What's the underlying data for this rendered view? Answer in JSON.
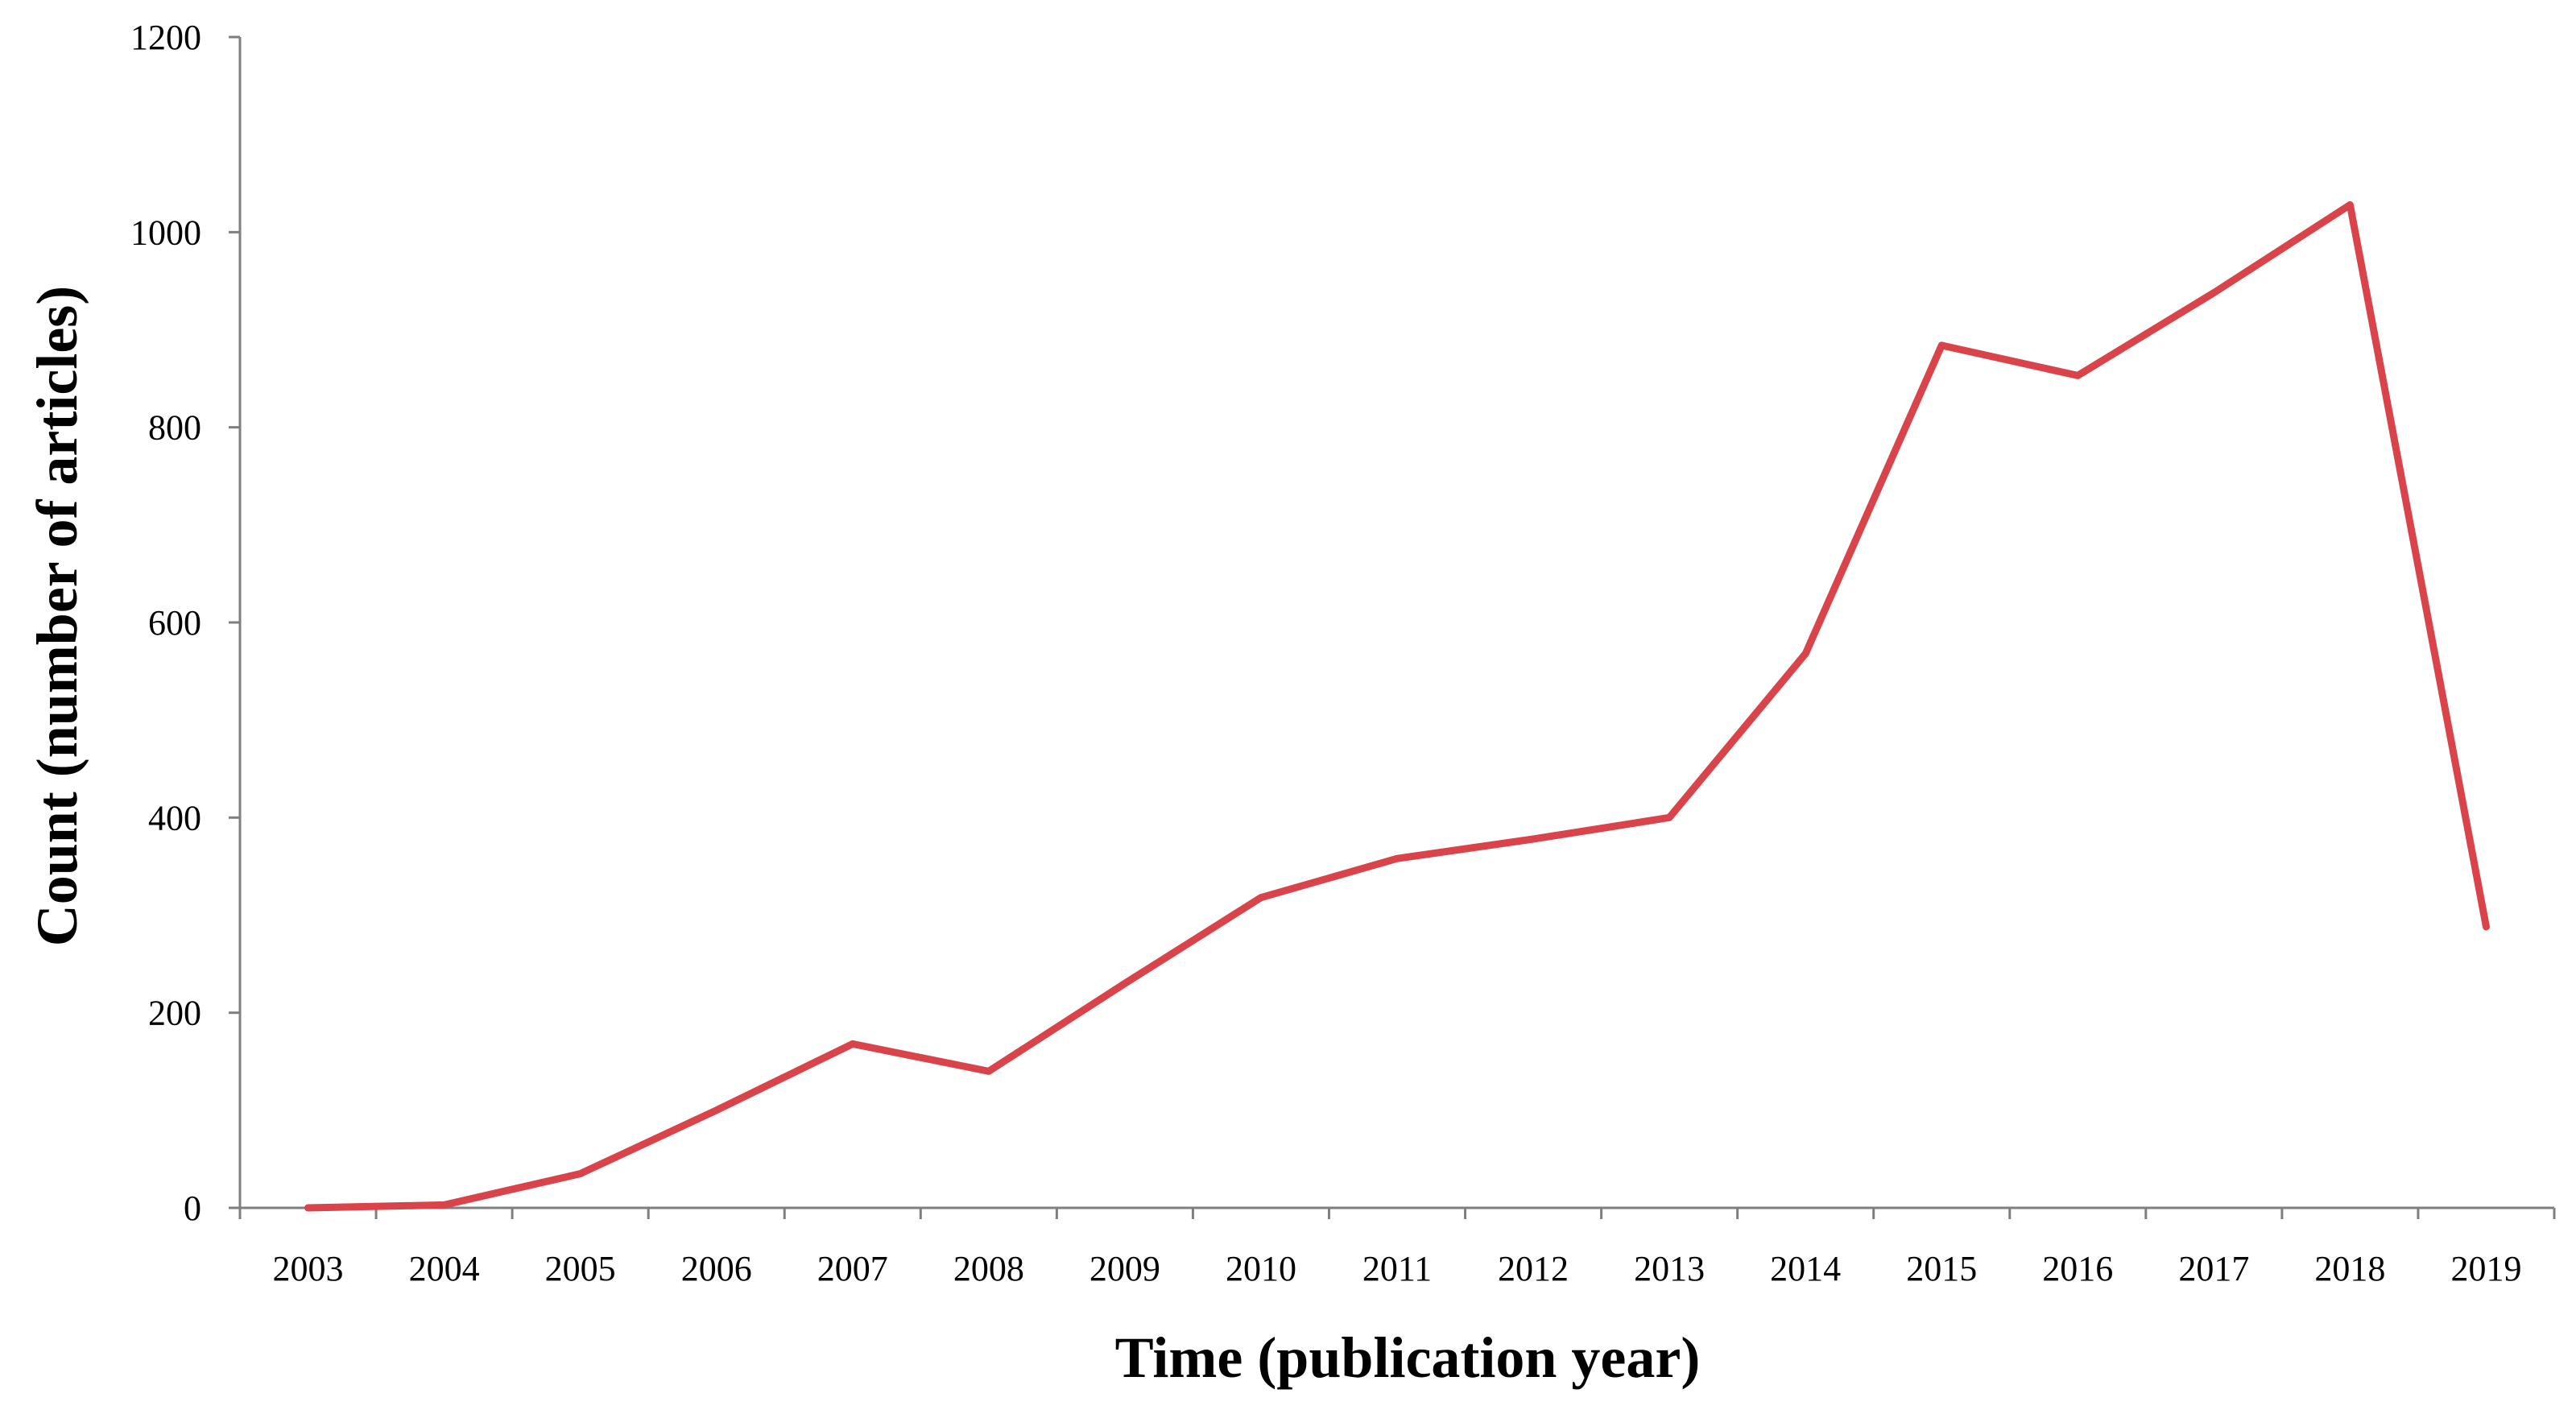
{
  "chart_data": {
    "type": "line",
    "title": "",
    "xlabel": "Time (publication year)",
    "ylabel": "Count (number of articles)",
    "categories": [
      "2003",
      "2004",
      "2005",
      "2006",
      "2007",
      "2008",
      "2009",
      "2010",
      "2011",
      "2012",
      "2013",
      "2014",
      "2015",
      "2016",
      "2017",
      "2018",
      "2019"
    ],
    "series": [
      {
        "values": [
          0,
          3,
          35,
          100,
          168,
          140,
          230,
          318,
          358,
          378,
          400,
          568,
          884,
          853,
          938,
          1028,
          288
        ],
        "color": "#d9434a"
      }
    ],
    "ylim": [
      0,
      1200
    ],
    "yticks": [
      0,
      200,
      400,
      600,
      800,
      1000,
      1200
    ],
    "grid": false,
    "legend": "none"
  }
}
